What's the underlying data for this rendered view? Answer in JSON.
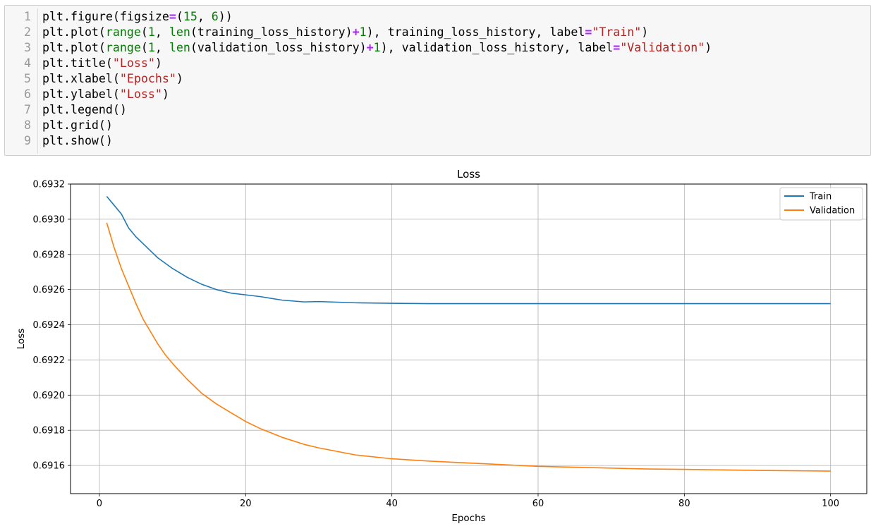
{
  "code_cell": {
    "lines": [
      {
        "num": "1",
        "tokens": [
          {
            "t": "plain",
            "v": "plt.figure(figsize"
          },
          {
            "t": "op",
            "v": "="
          },
          {
            "t": "plain",
            "v": "("
          },
          {
            "t": "num",
            "v": "15"
          },
          {
            "t": "plain",
            "v": ", "
          },
          {
            "t": "num",
            "v": "6"
          },
          {
            "t": "plain",
            "v": "))"
          }
        ]
      },
      {
        "num": "2",
        "tokens": [
          {
            "t": "plain",
            "v": "plt.plot("
          },
          {
            "t": "func",
            "v": "range"
          },
          {
            "t": "plain",
            "v": "("
          },
          {
            "t": "num",
            "v": "1"
          },
          {
            "t": "plain",
            "v": ", "
          },
          {
            "t": "func",
            "v": "len"
          },
          {
            "t": "plain",
            "v": "(training_loss_history)"
          },
          {
            "t": "op",
            "v": "+"
          },
          {
            "t": "num",
            "v": "1"
          },
          {
            "t": "plain",
            "v": "), training_loss_history, label"
          },
          {
            "t": "op",
            "v": "="
          },
          {
            "t": "str",
            "v": "\"Train\""
          },
          {
            "t": "plain",
            "v": ")"
          }
        ]
      },
      {
        "num": "3",
        "tokens": [
          {
            "t": "plain",
            "v": "plt.plot("
          },
          {
            "t": "func",
            "v": "range"
          },
          {
            "t": "plain",
            "v": "("
          },
          {
            "t": "num",
            "v": "1"
          },
          {
            "t": "plain",
            "v": ", "
          },
          {
            "t": "func",
            "v": "len"
          },
          {
            "t": "plain",
            "v": "(validation_loss_history)"
          },
          {
            "t": "op",
            "v": "+"
          },
          {
            "t": "num",
            "v": "1"
          },
          {
            "t": "plain",
            "v": "), validation_loss_history, label"
          },
          {
            "t": "op",
            "v": "="
          },
          {
            "t": "str",
            "v": "\"Validation\""
          },
          {
            "t": "plain",
            "v": ")"
          }
        ]
      },
      {
        "num": "4",
        "tokens": [
          {
            "t": "plain",
            "v": "plt.title("
          },
          {
            "t": "str",
            "v": "\"Loss\""
          },
          {
            "t": "plain",
            "v": ")"
          }
        ]
      },
      {
        "num": "5",
        "tokens": [
          {
            "t": "plain",
            "v": "plt.xlabel("
          },
          {
            "t": "str",
            "v": "\"Epochs\""
          },
          {
            "t": "plain",
            "v": ")"
          }
        ]
      },
      {
        "num": "6",
        "tokens": [
          {
            "t": "plain",
            "v": "plt.ylabel("
          },
          {
            "t": "str",
            "v": "\"Loss\""
          },
          {
            "t": "plain",
            "v": ")"
          }
        ]
      },
      {
        "num": "7",
        "tokens": [
          {
            "t": "plain",
            "v": "plt.legend()"
          }
        ]
      },
      {
        "num": "8",
        "tokens": [
          {
            "t": "plain",
            "v": "plt.grid()"
          }
        ]
      },
      {
        "num": "9",
        "tokens": [
          {
            "t": "plain",
            "v": "plt.show()"
          }
        ]
      }
    ]
  },
  "colors": {
    "train": "#1f77b4",
    "validation": "#ff7f0e",
    "grid": "#b0b0b0"
  },
  "chart_data": {
    "type": "line",
    "title": "Loss",
    "xlabel": "Epochs",
    "ylabel": "Loss",
    "xlim": [
      -3.95,
      104.95
    ],
    "ylim": [
      0.69144,
      0.6932
    ],
    "xticks": [
      0,
      20,
      40,
      60,
      80,
      100
    ],
    "xtick_labels": [
      "0",
      "20",
      "40",
      "60",
      "80",
      "100"
    ],
    "yticks": [
      0.6916,
      0.6918,
      0.692,
      0.6922,
      0.6924,
      0.6926,
      0.6928,
      0.693,
      0.6932
    ],
    "ytick_labels": [
      "0.6916",
      "0.6918",
      "0.6920",
      "0.6922",
      "0.6924",
      "0.6926",
      "0.6928",
      "0.6930",
      "0.6932"
    ],
    "grid": true,
    "legend_position": "top-right",
    "legend": [
      "Train",
      "Validation"
    ],
    "series": [
      {
        "name": "Train",
        "x": [
          1,
          2,
          3,
          4,
          5,
          6,
          7,
          8,
          9,
          10,
          12,
          14,
          16,
          18,
          20,
          22,
          25,
          28,
          30,
          35,
          40,
          45,
          50,
          55,
          60,
          65,
          70,
          75,
          80,
          85,
          90,
          95,
          100
        ],
        "values": [
          0.69313,
          0.69308,
          0.69303,
          0.69295,
          0.6929,
          0.69286,
          0.69282,
          0.69278,
          0.69275,
          0.69272,
          0.69267,
          0.69263,
          0.6926,
          0.69258,
          0.69257,
          0.69256,
          0.69254,
          0.69253,
          0.692532,
          0.692525,
          0.692522,
          0.69252,
          0.69252,
          0.69252,
          0.69252,
          0.69252,
          0.69252,
          0.69252,
          0.69252,
          0.69252,
          0.69252,
          0.69252,
          0.69252
        ]
      },
      {
        "name": "Validation",
        "x": [
          1,
          2,
          3,
          4,
          5,
          6,
          7,
          8,
          9,
          10,
          12,
          14,
          16,
          18,
          20,
          22,
          25,
          28,
          30,
          35,
          40,
          45,
          50,
          55,
          60,
          65,
          70,
          75,
          80,
          85,
          90,
          95,
          100
        ],
        "values": [
          0.69298,
          0.69284,
          0.69272,
          0.69262,
          0.69252,
          0.69243,
          0.69236,
          0.69229,
          0.69223,
          0.69218,
          0.69209,
          0.69201,
          0.69195,
          0.6919,
          0.69185,
          0.69181,
          0.69176,
          0.69172,
          0.6917,
          0.69166,
          0.691638,
          0.691625,
          0.691615,
          0.691605,
          0.691595,
          0.69159,
          0.691585,
          0.69158,
          0.691578,
          0.691575,
          0.691572,
          0.69157,
          0.691568
        ]
      }
    ]
  }
}
